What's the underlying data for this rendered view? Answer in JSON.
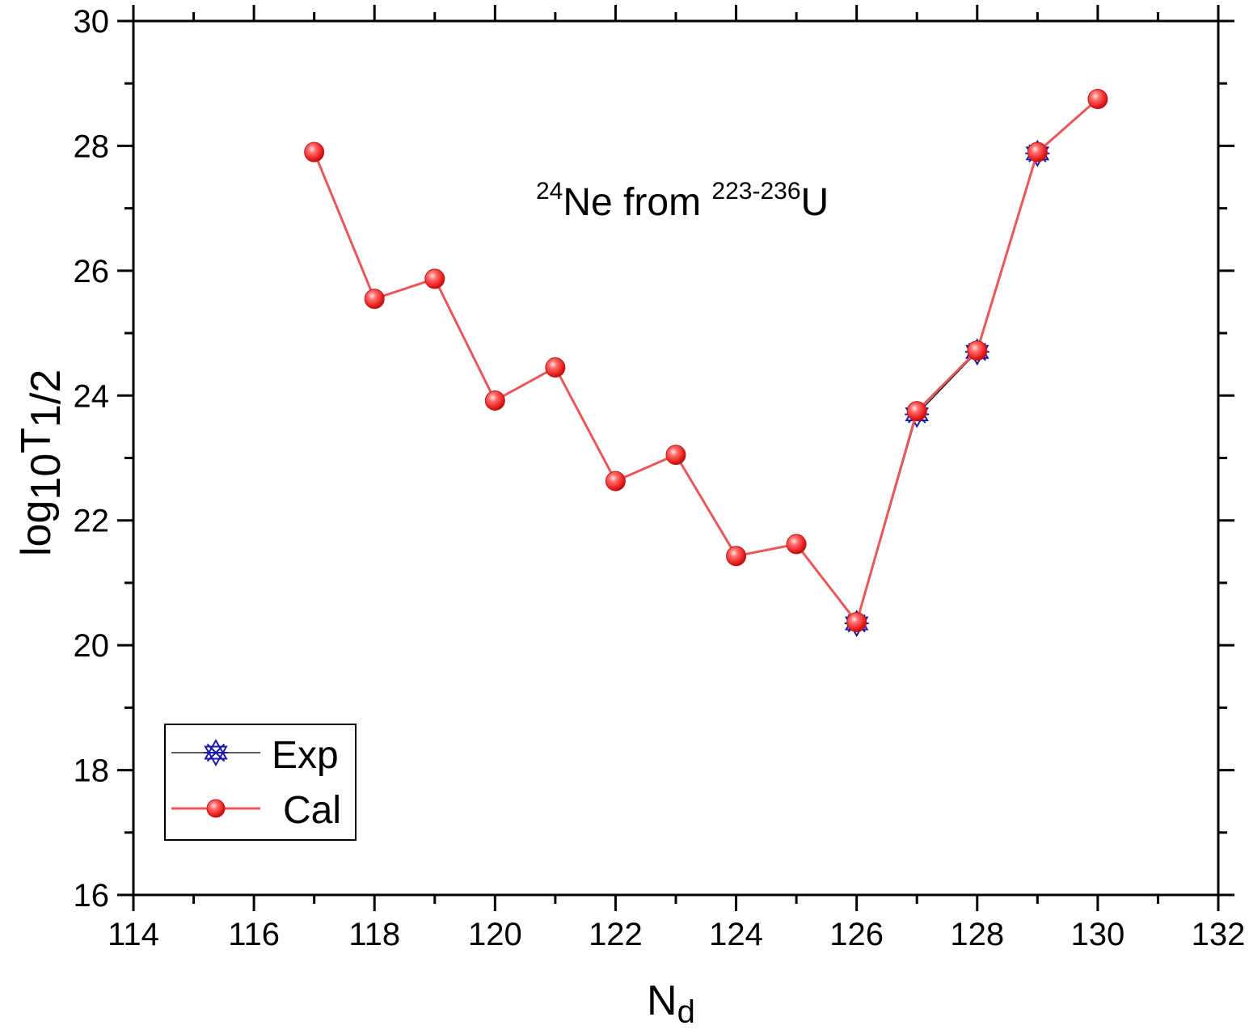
{
  "chart_data": {
    "type": "line",
    "title": "",
    "annotation": {
      "mass_sup": "24",
      "main": "Ne from ",
      "range_sup": "223-236",
      "element": "U"
    },
    "xlabel": {
      "main": "N",
      "sub": "d"
    },
    "ylabel": {
      "main": "log",
      "sub1": "10",
      "mid": "T",
      "sub2": "1/2"
    },
    "xlim": [
      114,
      132
    ],
    "ylim": [
      16,
      30
    ],
    "xticks": [
      114,
      116,
      118,
      120,
      122,
      124,
      126,
      128,
      130,
      132
    ],
    "yticks": [
      16,
      18,
      20,
      22,
      24,
      26,
      28,
      30
    ],
    "legend": {
      "placement": "bottom-left"
    },
    "series": [
      {
        "name": "Exp",
        "marker": "star",
        "color": "#1a1aa8",
        "line_color": "#000000",
        "x": [
          126,
          127,
          128,
          129
        ],
        "y": [
          20.35,
          23.7,
          24.7,
          27.88
        ]
      },
      {
        "name": "Cal",
        "marker": "sphere",
        "color": "#e8312f",
        "line_color": "#e8585a",
        "x": [
          117,
          118,
          119,
          120,
          121,
          122,
          123,
          124,
          125,
          126,
          127,
          128,
          129,
          130
        ],
        "y": [
          27.9,
          25.55,
          25.87,
          23.92,
          24.45,
          22.63,
          23.05,
          21.43,
          21.62,
          20.37,
          23.75,
          24.72,
          27.9,
          28.75
        ]
      }
    ]
  }
}
